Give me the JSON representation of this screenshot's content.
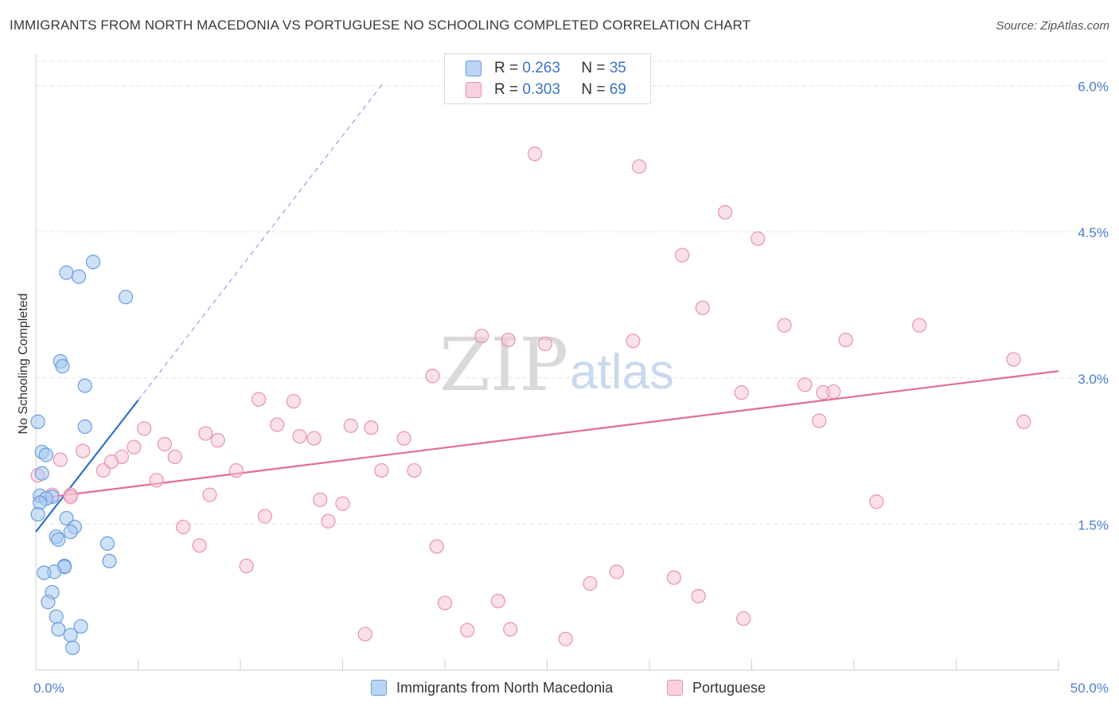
{
  "title": "IMMIGRANTS FROM NORTH MACEDONIA VS PORTUGUESE NO SCHOOLING COMPLETED CORRELATION CHART",
  "source": "Source: ZipAtlas.com",
  "watermark": {
    "zip": "ZIP",
    "atlas": "atlas"
  },
  "legend": {
    "r_label": "R =",
    "n_label": "N =",
    "series1": {
      "r": "0.263",
      "n": "35"
    },
    "series2": {
      "r": "0.303",
      "n": "69"
    }
  },
  "colors": {
    "series1_fill": "#a8c8f0",
    "series1_stroke": "#6a9ee0",
    "series1_line": "#2f6fcf",
    "series2_fill": "#f6c6d6",
    "series2_stroke": "#e892b0",
    "series2_line": "#e06d98",
    "grid": "#e4e4e4",
    "axis_text": "#4a7fd0"
  },
  "chart_data": {
    "type": "scatter",
    "title": "IMMIGRANTS FROM NORTH MACEDONIA VS PORTUGUESE NO SCHOOLING COMPLETED CORRELATION CHART",
    "xlabel": "",
    "ylabel": "No Schooling Completed",
    "xlim": [
      0,
      50
    ],
    "ylim": [
      0,
      6.25
    ],
    "x_tick_labels": [
      "0.0%",
      "50.0%"
    ],
    "y_ticks": [
      1.5,
      3.0,
      4.5,
      6.0
    ],
    "y_tick_labels": [
      "1.5%",
      "3.0%",
      "4.5%",
      "6.0%"
    ],
    "grid": true,
    "series": [
      {
        "name": "Immigrants from North Macedonia",
        "r": 0.263,
        "n": 35,
        "trend": {
          "x0": 0.0,
          "y0": 1.42,
          "x1": 5.0,
          "y1": 2.77,
          "dash_to_x": 17.0,
          "dash_to_y": 6.03
        },
        "points": [
          [
            0.1,
            2.55
          ],
          [
            0.3,
            2.24
          ],
          [
            0.5,
            2.21
          ],
          [
            0.3,
            2.02
          ],
          [
            0.2,
            1.79
          ],
          [
            0.8,
            1.78
          ],
          [
            0.5,
            1.76
          ],
          [
            0.2,
            1.72
          ],
          [
            0.1,
            1.6
          ],
          [
            1.5,
            1.56
          ],
          [
            1.9,
            1.47
          ],
          [
            1.7,
            1.42
          ],
          [
            1.0,
            1.37
          ],
          [
            1.1,
            1.34
          ],
          [
            3.5,
            1.3
          ],
          [
            3.6,
            1.12
          ],
          [
            1.4,
            1.07
          ],
          [
            1.4,
            1.06
          ],
          [
            0.9,
            1.01
          ],
          [
            0.4,
            1.0
          ],
          [
            0.8,
            0.8
          ],
          [
            0.6,
            0.7
          ],
          [
            1.0,
            0.55
          ],
          [
            1.1,
            0.42
          ],
          [
            2.2,
            0.45
          ],
          [
            1.7,
            0.36
          ],
          [
            1.8,
            0.23
          ],
          [
            2.4,
            2.5
          ],
          [
            1.2,
            3.17
          ],
          [
            1.3,
            3.12
          ],
          [
            2.4,
            2.92
          ],
          [
            1.5,
            4.08
          ],
          [
            2.1,
            4.04
          ],
          [
            2.8,
            4.19
          ],
          [
            4.4,
            3.83
          ]
        ]
      },
      {
        "name": "Portuguese",
        "r": 0.303,
        "n": 69,
        "trend": {
          "x0": 0.0,
          "y0": 1.76,
          "x1": 50.0,
          "y1": 3.07
        },
        "points": [
          [
            0.1,
            2.0
          ],
          [
            1.2,
            2.16
          ],
          [
            0.8,
            1.8
          ],
          [
            1.7,
            1.8
          ],
          [
            2.3,
            2.25
          ],
          [
            3.3,
            2.05
          ],
          [
            4.2,
            2.19
          ],
          [
            3.7,
            2.14
          ],
          [
            4.8,
            2.29
          ],
          [
            5.3,
            2.48
          ],
          [
            5.9,
            1.95
          ],
          [
            6.3,
            2.32
          ],
          [
            6.8,
            2.19
          ],
          [
            7.2,
            1.47
          ],
          [
            8.3,
            2.43
          ],
          [
            8.0,
            1.28
          ],
          [
            8.9,
            2.36
          ],
          [
            9.8,
            2.05
          ],
          [
            8.5,
            1.8
          ],
          [
            10.3,
            1.07
          ],
          [
            10.9,
            2.78
          ],
          [
            11.2,
            1.58
          ],
          [
            11.8,
            2.52
          ],
          [
            12.6,
            2.76
          ],
          [
            12.9,
            2.4
          ],
          [
            13.6,
            2.38
          ],
          [
            13.9,
            1.75
          ],
          [
            14.3,
            1.53
          ],
          [
            15.0,
            1.71
          ],
          [
            15.4,
            2.51
          ],
          [
            16.1,
            0.37
          ],
          [
            16.4,
            2.49
          ],
          [
            16.9,
            2.05
          ],
          [
            18.5,
            2.05
          ],
          [
            18.0,
            2.38
          ],
          [
            19.4,
            3.02
          ],
          [
            19.6,
            1.27
          ],
          [
            20.0,
            0.69
          ],
          [
            21.1,
            0.41
          ],
          [
            21.8,
            3.43
          ],
          [
            22.6,
            0.71
          ],
          [
            23.1,
            3.39
          ],
          [
            23.2,
            0.42
          ],
          [
            24.4,
            5.3
          ],
          [
            24.9,
            3.35
          ],
          [
            25.9,
            0.32
          ],
          [
            27.1,
            0.89
          ],
          [
            28.4,
            1.01
          ],
          [
            29.2,
            3.38
          ],
          [
            29.5,
            5.17
          ],
          [
            31.2,
            0.95
          ],
          [
            31.6,
            4.26
          ],
          [
            32.4,
            0.76
          ],
          [
            32.6,
            3.72
          ],
          [
            33.7,
            4.7
          ],
          [
            34.5,
            2.85
          ],
          [
            34.6,
            0.53
          ],
          [
            35.3,
            4.43
          ],
          [
            36.6,
            3.54
          ],
          [
            37.6,
            2.93
          ],
          [
            38.3,
            2.56
          ],
          [
            38.5,
            2.85
          ],
          [
            39.0,
            2.86
          ],
          [
            39.6,
            3.39
          ],
          [
            41.1,
            1.73
          ],
          [
            43.2,
            3.54
          ],
          [
            47.8,
            3.19
          ],
          [
            48.3,
            2.55
          ],
          [
            1.7,
            1.78
          ]
        ]
      }
    ]
  }
}
